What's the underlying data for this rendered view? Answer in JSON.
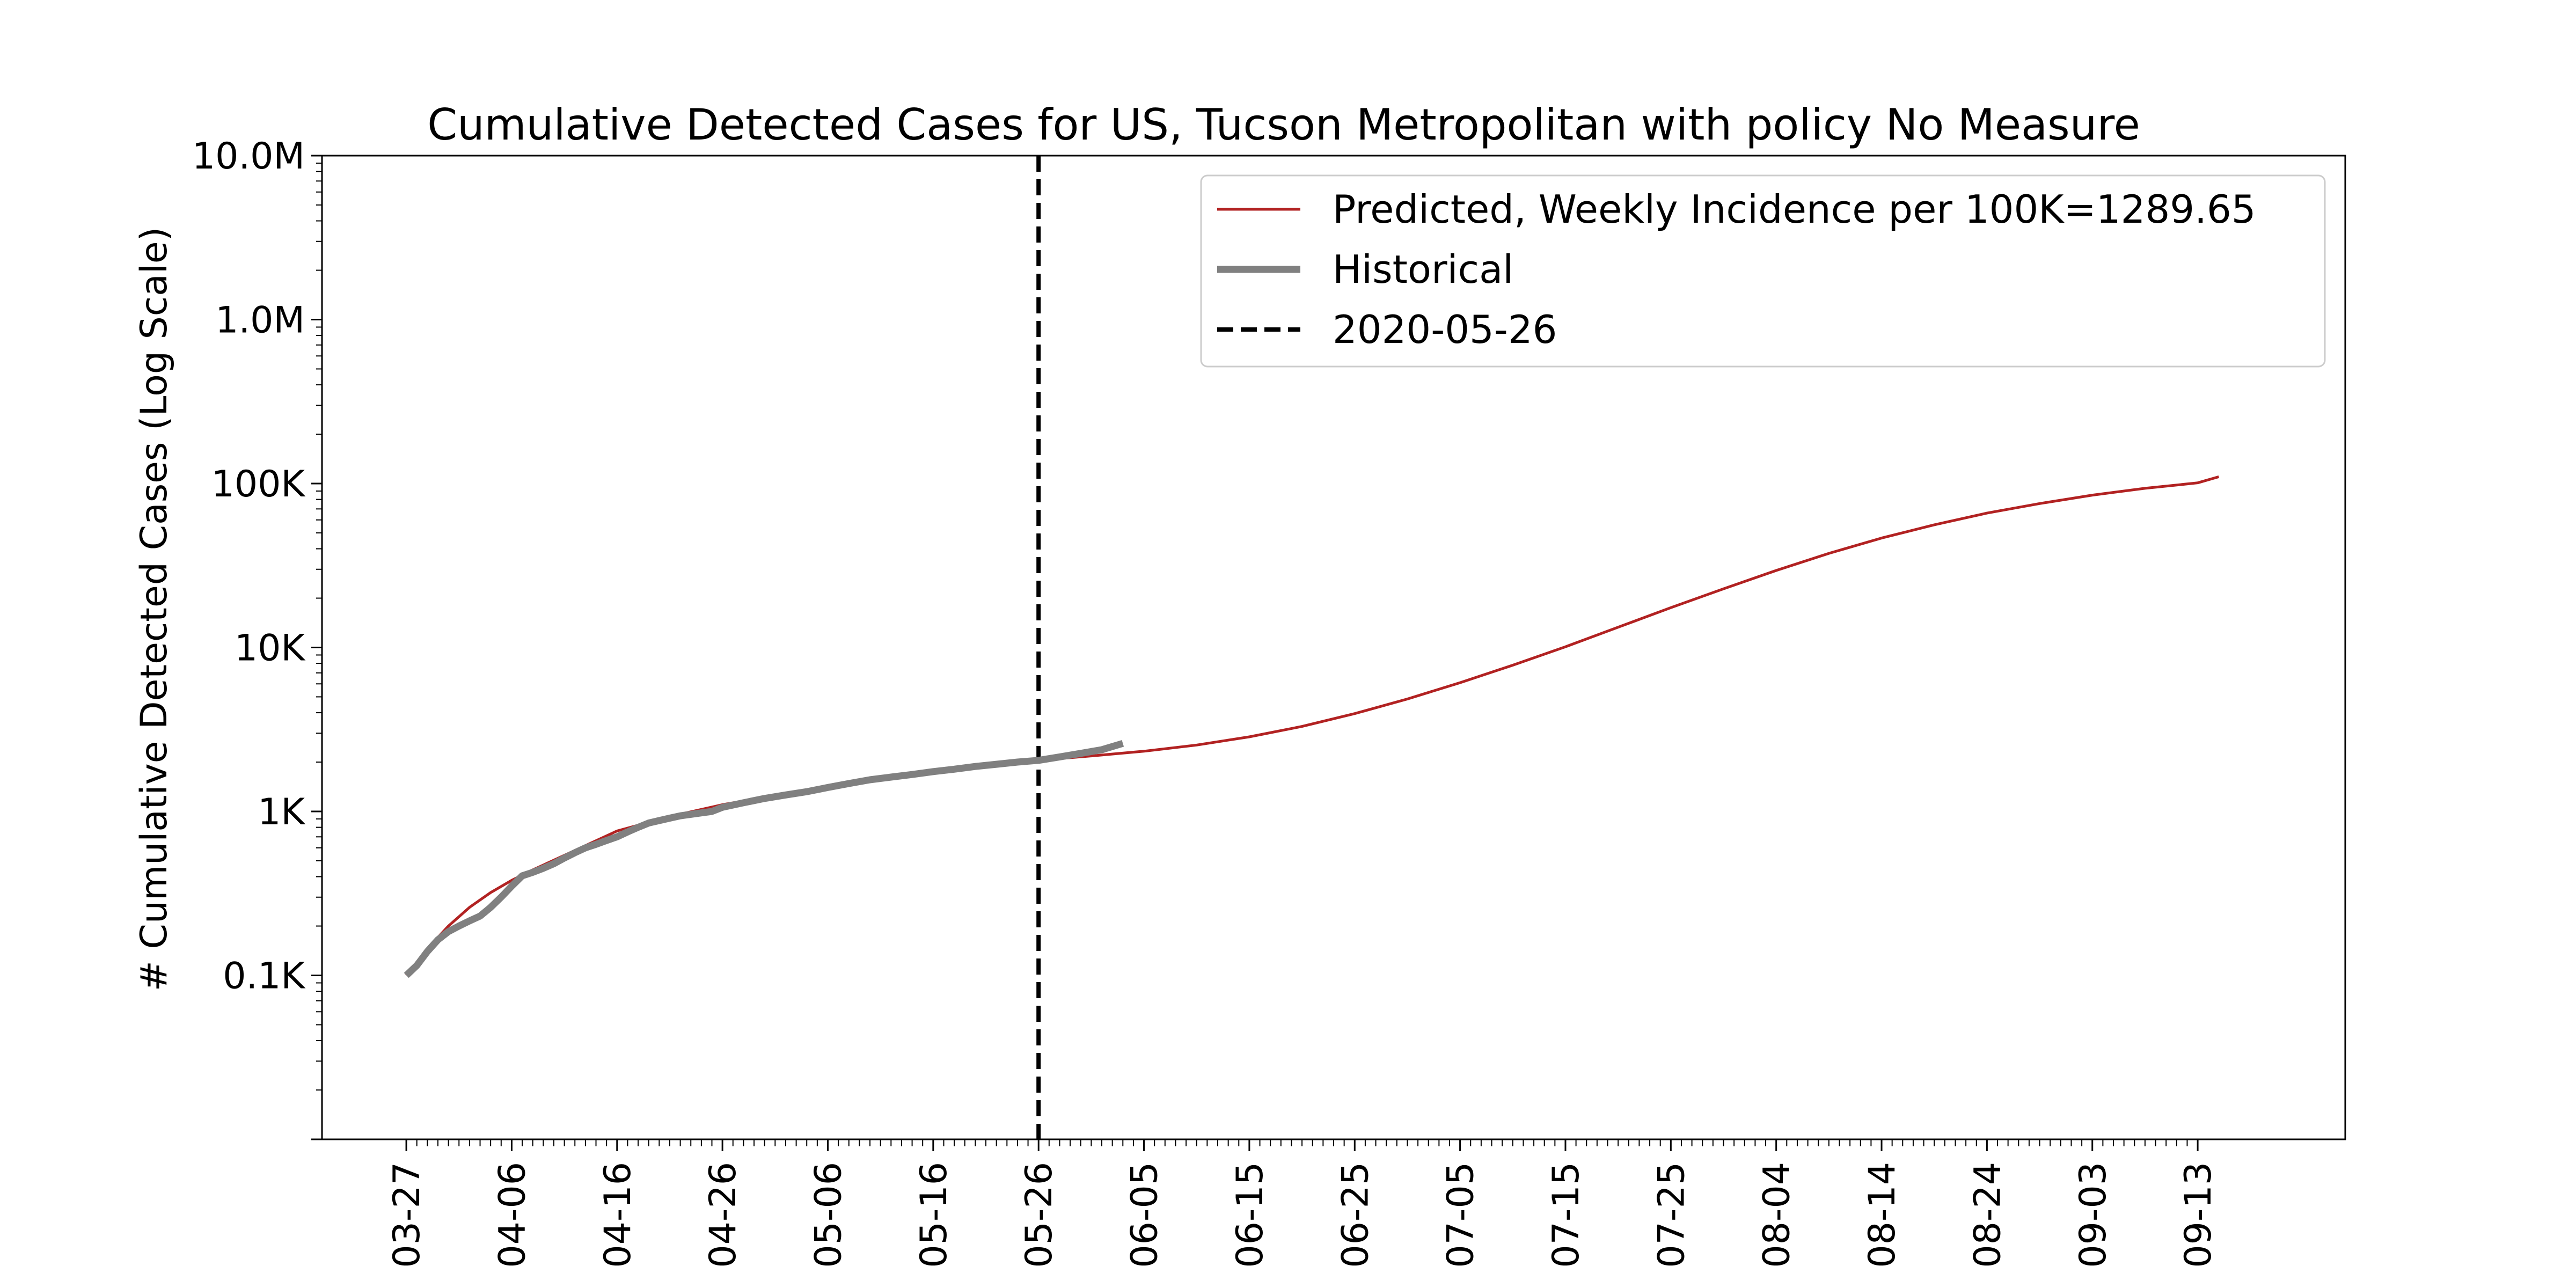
{
  "chart_data": {
    "type": "line",
    "title": "Cumulative Detected Cases for US, Tucson Metropolitan with policy No Measure",
    "xlabel": "",
    "ylabel": "# Cumulative Detected Cases (Log Scale)",
    "y_scale": "log",
    "ylim": [
      10,
      10000000
    ],
    "xlim": [
      "2020-03-19",
      "2020-09-27"
    ],
    "x_ticks": [
      "2020-03-27",
      "2020-04-06",
      "2020-04-16",
      "2020-04-26",
      "2020-05-06",
      "2020-05-16",
      "2020-05-26",
      "2020-06-05",
      "2020-06-15",
      "2020-06-25",
      "2020-07-05",
      "2020-07-15",
      "2020-07-25",
      "2020-08-04",
      "2020-08-14",
      "2020-08-24",
      "2020-09-03",
      "2020-09-13"
    ],
    "x_tick_labels": [
      "03-27",
      "04-06",
      "04-16",
      "04-26",
      "05-06",
      "05-16",
      "05-26",
      "06-05",
      "06-15",
      "06-25",
      "07-05",
      "07-15",
      "07-25",
      "08-04",
      "08-14",
      "08-24",
      "09-03",
      "09-13"
    ],
    "y_ticks": [
      100,
      1000,
      10000,
      100000,
      1000000,
      10000000
    ],
    "y_tick_labels": [
      "0.1K",
      "1K",
      "10K",
      "100K",
      "1.0M",
      "10.0M"
    ],
    "grid": false,
    "legend_position": "top-right",
    "vline": {
      "x": "2020-05-26",
      "label": "2020-05-26",
      "color": "#000000"
    },
    "series": [
      {
        "name": "Predicted, Weekly Incidence per 100K=1289.65",
        "color": "#b22222",
        "x": [
          "2020-03-27",
          "2020-03-29",
          "2020-03-31",
          "2020-04-02",
          "2020-04-04",
          "2020-04-06",
          "2020-04-08",
          "2020-04-11",
          "2020-04-16",
          "2020-04-21",
          "2020-04-26",
          "2020-05-01",
          "2020-05-06",
          "2020-05-11",
          "2020-05-16",
          "2020-05-21",
          "2020-05-26",
          "2020-05-31",
          "2020-06-05",
          "2020-06-10",
          "2020-06-15",
          "2020-06-20",
          "2020-06-25",
          "2020-06-30",
          "2020-07-05",
          "2020-07-10",
          "2020-07-15",
          "2020-07-20",
          "2020-07-25",
          "2020-07-30",
          "2020-08-04",
          "2020-08-09",
          "2020-08-14",
          "2020-08-19",
          "2020-08-24",
          "2020-08-29",
          "2020-09-03",
          "2020-09-08",
          "2020-09-13",
          "2020-09-15"
        ],
        "y": [
          100,
          145,
          200,
          260,
          320,
          380,
          440,
          540,
          760,
          930,
          1100,
          1250,
          1400,
          1580,
          1750,
          1900,
          2050,
          2180,
          2330,
          2540,
          2850,
          3300,
          3950,
          4850,
          6100,
          7800,
          10100,
          13300,
          17500,
          22800,
          29500,
          37500,
          46500,
          56000,
          66000,
          75500,
          85000,
          93500,
          101000,
          110000
        ]
      },
      {
        "name": "Historical",
        "color": "#808080",
        "x": [
          "2020-03-27",
          "2020-03-28",
          "2020-03-29",
          "2020-03-30",
          "2020-03-31",
          "2020-04-01",
          "2020-04-02",
          "2020-04-03",
          "2020-04-04",
          "2020-04-05",
          "2020-04-06",
          "2020-04-07",
          "2020-04-08",
          "2020-04-09",
          "2020-04-10",
          "2020-04-11",
          "2020-04-12",
          "2020-04-13",
          "2020-04-14",
          "2020-04-15",
          "2020-04-16",
          "2020-04-17",
          "2020-04-18",
          "2020-04-19",
          "2020-04-20",
          "2020-04-21",
          "2020-04-22",
          "2020-04-23",
          "2020-04-24",
          "2020-04-25",
          "2020-04-26",
          "2020-04-28",
          "2020-04-30",
          "2020-05-02",
          "2020-05-04",
          "2020-05-06",
          "2020-05-08",
          "2020-05-10",
          "2020-05-12",
          "2020-05-14",
          "2020-05-16",
          "2020-05-18",
          "2020-05-20",
          "2020-05-22",
          "2020-05-24",
          "2020-05-26",
          "2020-05-28",
          "2020-05-30",
          "2020-06-01",
          "2020-06-03"
        ],
        "y": [
          100,
          115,
          140,
          165,
          185,
          200,
          215,
          230,
          260,
          300,
          350,
          405,
          425,
          450,
          480,
          520,
          560,
          600,
          630,
          665,
          700,
          750,
          800,
          850,
          880,
          910,
          940,
          960,
          980,
          1000,
          1060,
          1130,
          1200,
          1260,
          1320,
          1400,
          1480,
          1560,
          1620,
          1680,
          1750,
          1810,
          1880,
          1940,
          2000,
          2050,
          2150,
          2260,
          2380,
          2600
        ]
      }
    ]
  }
}
